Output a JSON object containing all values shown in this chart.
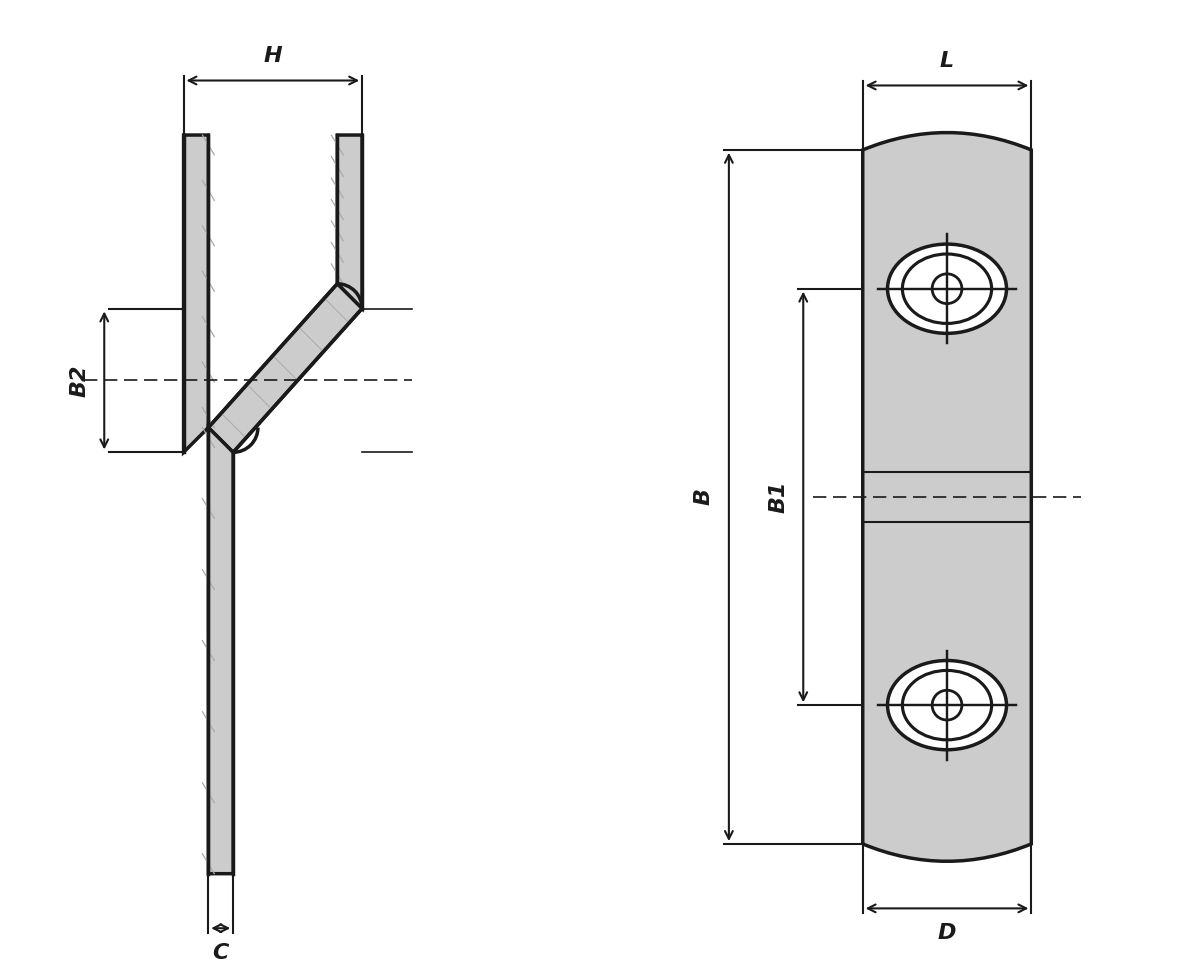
{
  "bg_color": "#ffffff",
  "line_color": "#1a1a1a",
  "fill_color": "#cccccc",
  "dim_color": "#1a1a1a",
  "label_H": "H",
  "label_B2": "B2",
  "label_C": "C",
  "label_L": "L",
  "label_B": "B",
  "label_B1": "B1",
  "label_D": "D",
  "font_size": 16,
  "lw_main": 2.5,
  "lw_thin": 1.5,
  "lw_dim": 1.5,
  "lw_hatch": 0.9
}
